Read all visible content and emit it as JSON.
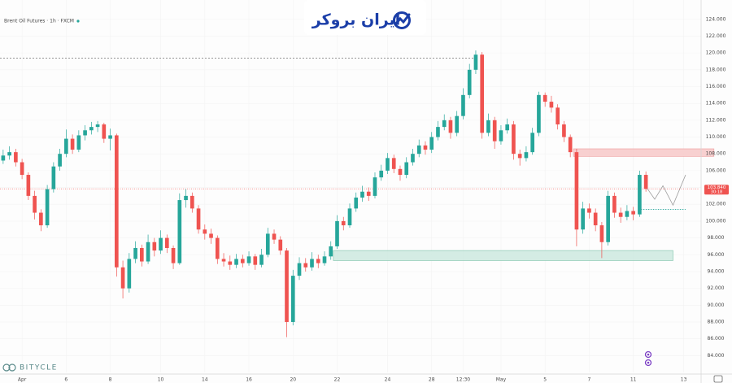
{
  "chart_data": {
    "type": "candlestick",
    "title": "Brent Oil Futures · 1h · FXCM",
    "logo": "ایران بروکر",
    "watermark": "BITYCLE",
    "up_color": "#26a69a",
    "down_color": "#ef5350",
    "xlim": [
      -0.5,
      110.5
    ],
    "ylim": [
      82,
      126.3
    ],
    "xticks": [
      {
        "value": 3,
        "label": "Apr"
      },
      {
        "value": 10,
        "label": "6"
      },
      {
        "value": 17,
        "label": "8"
      },
      {
        "value": 25,
        "label": "10"
      },
      {
        "value": 32,
        "label": "14"
      },
      {
        "value": 39,
        "label": "16"
      },
      {
        "value": 46,
        "label": "20"
      },
      {
        "value": 53,
        "label": "22"
      },
      {
        "value": 61,
        "label": "24"
      },
      {
        "value": 68,
        "label": "28"
      },
      {
        "value": 73,
        "label": "12:30"
      },
      {
        "value": 79,
        "label": "May"
      },
      {
        "value": 86,
        "label": "5"
      },
      {
        "value": 93,
        "label": "7"
      },
      {
        "value": 100,
        "label": "11"
      },
      {
        "value": 108,
        "label": "13"
      }
    ],
    "yticks": [
      {
        "value": 84,
        "label": "84.000"
      },
      {
        "value": 86,
        "label": "86.000"
      },
      {
        "value": 88,
        "label": "88.000"
      },
      {
        "value": 90,
        "label": "90.000"
      },
      {
        "value": 92,
        "label": "92.000"
      },
      {
        "value": 94,
        "label": "94.000"
      },
      {
        "value": 96,
        "label": "96.000"
      },
      {
        "value": 98,
        "label": "98.000"
      },
      {
        "value": 100,
        "label": "100.000"
      },
      {
        "value": 102,
        "label": "102.000"
      },
      {
        "value": 104,
        "label": "104.000"
      },
      {
        "value": 106,
        "label": "106.000"
      },
      {
        "value": 108,
        "label": "108.000"
      },
      {
        "value": 110,
        "label": "110.000"
      },
      {
        "value": 112,
        "label": "112.000"
      },
      {
        "value": 114,
        "label": "114.000"
      },
      {
        "value": 116,
        "label": "116.000"
      },
      {
        "value": 118,
        "label": "118.000"
      },
      {
        "value": 120,
        "label": "120.000"
      },
      {
        "value": 122,
        "label": "122.000"
      },
      {
        "value": 124,
        "label": "124.000"
      }
    ],
    "candles": [
      [
        107.2,
        108.5,
        106.8,
        107.8
      ],
      [
        107.8,
        108.9,
        107.3,
        108.2
      ],
      [
        108.2,
        108.6,
        106.5,
        107.0
      ],
      [
        107.0,
        107.4,
        105.0,
        105.5
      ],
      [
        105.5,
        105.8,
        102.5,
        103.0
      ],
      [
        103.0,
        103.6,
        100.2,
        101.0
      ],
      [
        101.0,
        101.4,
        98.8,
        99.5
      ],
      [
        99.5,
        104.3,
        99.2,
        103.8
      ],
      [
        103.8,
        107.0,
        103.4,
        106.5
      ],
      [
        106.5,
        108.6,
        106.0,
        108.0
      ],
      [
        108.0,
        110.9,
        107.6,
        109.8
      ],
      [
        109.8,
        110.3,
        108.0,
        108.5
      ],
      [
        108.5,
        110.8,
        108.2,
        110.2
      ],
      [
        110.2,
        111.4,
        109.6,
        110.8
      ],
      [
        110.8,
        111.8,
        110.3,
        111.2
      ],
      [
        111.2,
        111.9,
        110.6,
        111.5
      ],
      [
        111.5,
        111.7,
        109.3,
        109.8
      ],
      [
        109.8,
        111.0,
        108.4,
        110.2
      ],
      [
        110.2,
        110.4,
        93.4,
        94.5
      ],
      [
        94.5,
        95.3,
        90.8,
        92.0
      ],
      [
        92.0,
        96.2,
        91.5,
        95.5
      ],
      [
        95.5,
        97.6,
        95.0,
        96.8
      ],
      [
        96.8,
        97.2,
        94.6,
        95.2
      ],
      [
        95.2,
        98.4,
        94.9,
        97.5
      ],
      [
        97.5,
        98.0,
        95.8,
        96.5
      ],
      [
        96.5,
        98.9,
        96.1,
        98.0
      ],
      [
        98.0,
        98.4,
        96.2,
        96.8
      ],
      [
        96.8,
        97.1,
        94.3,
        95.0
      ],
      [
        95.0,
        103.3,
        94.8,
        102.5
      ],
      [
        102.5,
        103.8,
        101.6,
        103.0
      ],
      [
        103.0,
        103.4,
        101.0,
        101.5
      ],
      [
        101.5,
        101.9,
        98.5,
        99.0
      ],
      [
        99.0,
        99.6,
        97.8,
        98.5
      ],
      [
        98.5,
        99.1,
        97.3,
        98.0
      ],
      [
        98.0,
        98.3,
        94.9,
        95.5
      ],
      [
        95.5,
        96.2,
        94.6,
        95.2
      ],
      [
        95.2,
        95.9,
        94.2,
        94.8
      ],
      [
        94.8,
        96.1,
        94.4,
        95.5
      ],
      [
        95.5,
        96.0,
        94.5,
        95.0
      ],
      [
        95.0,
        96.4,
        94.7,
        95.8
      ],
      [
        95.8,
        96.1,
        94.2,
        94.8
      ],
      [
        94.8,
        96.7,
        94.5,
        96.0
      ],
      [
        96.0,
        99.2,
        95.7,
        98.5
      ],
      [
        98.5,
        99.0,
        97.3,
        97.8
      ],
      [
        97.8,
        98.2,
        96.0,
        96.5
      ],
      [
        96.5,
        96.8,
        86.2,
        88.0
      ],
      [
        88.0,
        94.2,
        87.6,
        93.5
      ],
      [
        93.5,
        95.7,
        93.0,
        95.0
      ],
      [
        95.0,
        95.6,
        94.0,
        94.5
      ],
      [
        94.5,
        96.3,
        94.1,
        95.5
      ],
      [
        95.5,
        96.0,
        94.4,
        95.0
      ],
      [
        95.0,
        96.4,
        94.7,
        95.8
      ],
      [
        95.8,
        97.6,
        95.4,
        97.0
      ],
      [
        97.0,
        100.7,
        96.7,
        100.0
      ],
      [
        100.0,
        100.5,
        98.9,
        99.5
      ],
      [
        99.5,
        102.1,
        99.2,
        101.5
      ],
      [
        101.5,
        103.4,
        101.1,
        102.8
      ],
      [
        102.8,
        104.2,
        102.3,
        103.5
      ],
      [
        103.5,
        104.0,
        102.4,
        103.0
      ],
      [
        103.0,
        105.8,
        102.7,
        105.2
      ],
      [
        105.2,
        106.7,
        104.8,
        106.0
      ],
      [
        106.0,
        108.1,
        105.6,
        107.5
      ],
      [
        107.5,
        107.9,
        105.7,
        106.2
      ],
      [
        106.2,
        106.6,
        104.8,
        105.5
      ],
      [
        105.5,
        107.6,
        105.1,
        107.0
      ],
      [
        107.0,
        108.6,
        106.6,
        108.0
      ],
      [
        108.0,
        109.7,
        107.6,
        109.0
      ],
      [
        109.0,
        109.5,
        107.9,
        108.5
      ],
      [
        108.5,
        110.6,
        108.1,
        110.0
      ],
      [
        110.0,
        111.9,
        109.6,
        111.2
      ],
      [
        111.2,
        112.7,
        110.8,
        112.0
      ],
      [
        112.0,
        112.4,
        109.8,
        110.5
      ],
      [
        110.5,
        113.1,
        110.1,
        112.5
      ],
      [
        112.5,
        115.8,
        112.1,
        115.0
      ],
      [
        115.0,
        118.7,
        114.6,
        118.0
      ],
      [
        118.0,
        120.3,
        117.5,
        119.8
      ],
      [
        119.8,
        120.1,
        109.8,
        110.5
      ],
      [
        110.5,
        112.8,
        110.1,
        112.0
      ],
      [
        112.0,
        112.4,
        108.6,
        109.5
      ],
      [
        109.5,
        111.4,
        109.1,
        110.8
      ],
      [
        110.8,
        112.2,
        110.4,
        111.5
      ],
      [
        111.5,
        111.9,
        107.3,
        108.0
      ],
      [
        108.0,
        108.5,
        106.6,
        107.5
      ],
      [
        107.5,
        108.9,
        107.1,
        108.2
      ],
      [
        108.2,
        111.1,
        107.9,
        110.5
      ],
      [
        110.5,
        115.4,
        110.1,
        115.0
      ],
      [
        115.0,
        115.3,
        113.6,
        114.2
      ],
      [
        114.2,
        114.9,
        112.9,
        113.5
      ],
      [
        113.5,
        113.9,
        110.9,
        111.5
      ],
      [
        111.5,
        111.9,
        109.4,
        110.0
      ],
      [
        110.0,
        110.3,
        107.6,
        108.2
      ],
      [
        108.2,
        108.6,
        97.0,
        99.0
      ],
      [
        99.0,
        102.3,
        98.5,
        101.5
      ],
      [
        101.5,
        102.1,
        100.3,
        101.0
      ],
      [
        101.0,
        101.5,
        98.8,
        99.5
      ],
      [
        99.5,
        99.9,
        95.6,
        97.5
      ],
      [
        97.5,
        103.6,
        97.1,
        103.0
      ],
      [
        103.0,
        103.4,
        100.4,
        101.0
      ],
      [
        101.0,
        101.6,
        99.8,
        100.5
      ],
      [
        100.5,
        101.9,
        100.1,
        101.2
      ],
      [
        101.2,
        101.7,
        100.1,
        100.8
      ],
      [
        100.8,
        106.0,
        100.5,
        105.5
      ],
      [
        105.5,
        105.9,
        103.5,
        103.84
      ]
    ],
    "zones": [
      {
        "x1": 90.5,
        "x2": 112.8,
        "y1": 107.7,
        "y2": 108.6,
        "color": "#f7c8c8",
        "stroke": "#ef9a9a"
      },
      {
        "x1": 52.4,
        "x2": 106.3,
        "y1": 95.3,
        "y2": 96.5,
        "color": "#cde9df",
        "stroke": "#7cc3a9"
      }
    ],
    "high_line": {
      "x1": -0.5,
      "x2": 75,
      "y": 119.4,
      "color": "#555555"
    },
    "target_line": {
      "x1": 100.8,
      "x2": 108.3,
      "y": 101.4,
      "color": "#26a69a"
    },
    "projection": {
      "x": [
        102.1,
        103.4,
        104.7,
        106.3,
        108.3
      ],
      "y": [
        104,
        102.6,
        104.2,
        101.9,
        105.5
      ],
      "color": "#9e9e9e"
    },
    "last_price": {
      "value": 103.84,
      "label": "103.840"
    },
    "countdown": "30:18"
  }
}
